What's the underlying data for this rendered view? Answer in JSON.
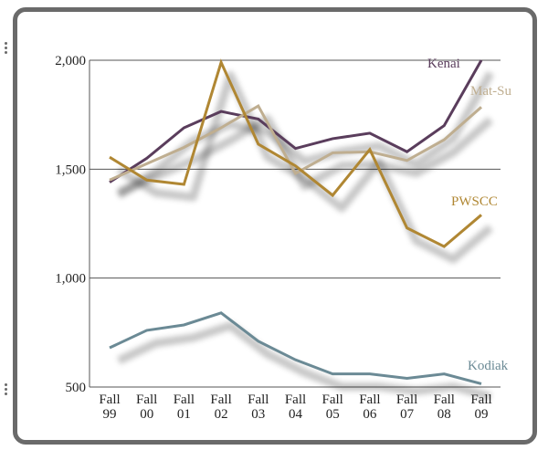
{
  "chart_data": {
    "type": "line",
    "categories": [
      [
        "Fall",
        "99"
      ],
      [
        "Fall",
        "00"
      ],
      [
        "Fall",
        "01"
      ],
      [
        "Fall",
        "02"
      ],
      [
        "Fall",
        "03"
      ],
      [
        "Fall",
        "04"
      ],
      [
        "Fall",
        "05"
      ],
      [
        "Fall",
        "06"
      ],
      [
        "Fall",
        "07"
      ],
      [
        "Fall",
        "08"
      ],
      [
        "Fall",
        "09"
      ]
    ],
    "yticks": [
      {
        "value": 2000,
        "label": "2,000"
      },
      {
        "value": 1500,
        "label": "1,500"
      },
      {
        "value": 1000,
        "label": "1,000"
      },
      {
        "value": 500,
        "label": "500"
      }
    ],
    "ylim": [
      500,
      2000
    ],
    "grid": true,
    "series": [
      {
        "name": "Kenai",
        "color": "#5a3d5c",
        "values": [
          1440,
          1550,
          1690,
          1765,
          1730,
          1595,
          1640,
          1665,
          1580,
          1700,
          2000
        ]
      },
      {
        "name": "Mat-Su",
        "color": "#bfae90",
        "values": [
          1450,
          1525,
          1600,
          1690,
          1790,
          1480,
          1575,
          1580,
          1540,
          1635,
          1785
        ]
      },
      {
        "name": "PWSCC",
        "color": "#b08733",
        "values": [
          1555,
          1450,
          1430,
          1990,
          1615,
          1515,
          1380,
          1590,
          1230,
          1145,
          1290
        ]
      },
      {
        "name": "Kodiak",
        "color": "#6b8a95",
        "values": [
          680,
          760,
          785,
          840,
          710,
          625,
          560,
          560,
          540,
          560,
          515
        ]
      }
    ]
  }
}
